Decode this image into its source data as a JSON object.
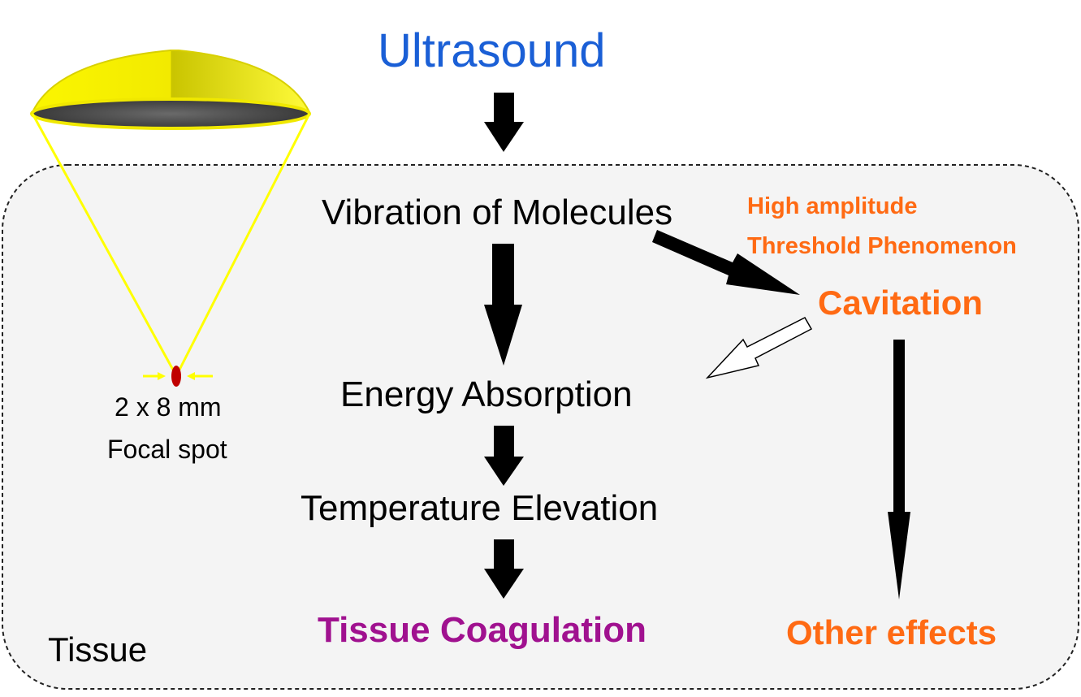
{
  "title": "Ultrasound",
  "steps": {
    "vibration": "Vibration of Molecules",
    "energy": "Energy Absorption",
    "temperature": "Temperature Elevation",
    "coagulation": "Tissue Coagulation"
  },
  "cavitation_branch": {
    "note_line1": "High amplitude",
    "note_line2": "Threshold Phenomenon",
    "cavitation": "Cavitation",
    "other_effects": "Other effects"
  },
  "transducer": {
    "size": "2 x 8 mm",
    "focal_label": "Focal spot"
  },
  "region_label": "Tissue",
  "colors": {
    "title": "#1a5fd6",
    "orange": "#ff6a13",
    "purple": "#a0118f",
    "transducer_yellow": "#f7ef00",
    "focal_red": "#c00000",
    "tissue_fill": "#f4f4f4"
  }
}
